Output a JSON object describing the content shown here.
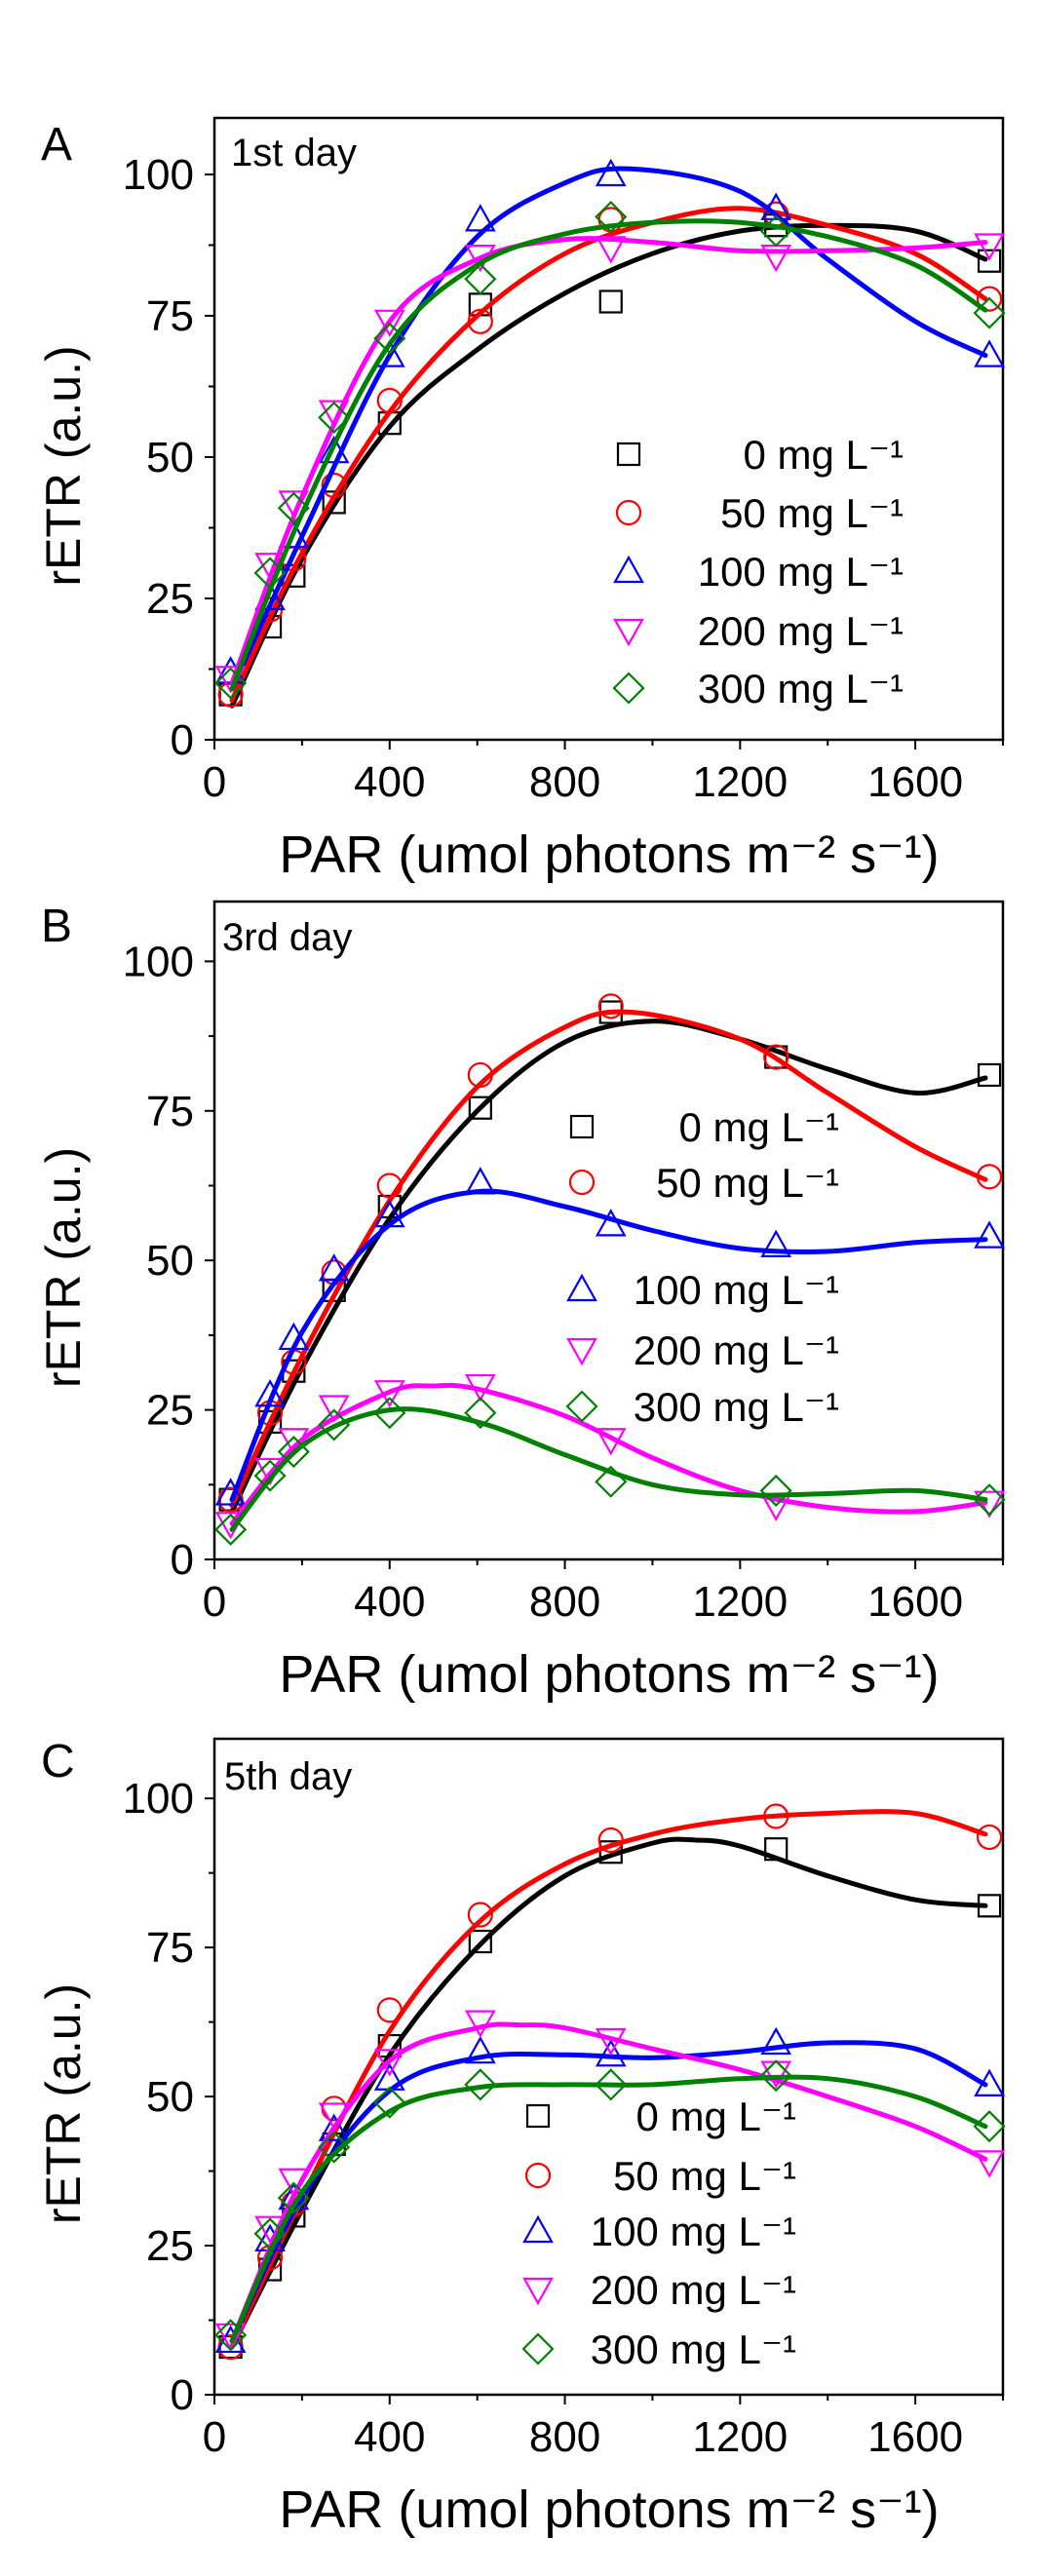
{
  "chart_data": [
    {
      "type": "scatter",
      "panel_label": "A",
      "annotation": "1st day",
      "xlabel": "PAR (umol photons m⁻² s⁻¹)",
      "ylabel": "rETR (a.u.)",
      "xlim": [
        0,
        1800
      ],
      "ylim": [
        0,
        110
      ],
      "xticks": [
        "0",
        "400",
        "800",
        "1200",
        "1600"
      ],
      "yticks": [
        "0",
        "25",
        "50",
        "75",
        "100"
      ],
      "grid": false,
      "legend_placement": "bottom-right",
      "x": [
        37,
        127,
        181,
        273,
        400,
        607,
        905,
        1282,
        1769
      ],
      "series": [
        {
          "name": "0 mg L⁻¹",
          "color": "#000000",
          "marker": "square",
          "values": [
            8,
            20,
            29,
            42,
            56,
            77,
            77.5,
            91,
            84.7
          ],
          "fit": {
            "x": [
              40,
              200,
              400,
              600,
              800,
              1000,
              1200,
              1400,
              1600,
              1760
            ],
            "y": [
              6,
              32,
              55.4,
              69,
              79,
              86,
              90,
              91,
              90,
              85
            ]
          }
        },
        {
          "name": "50 mg L⁻¹",
          "color": "#ff0000",
          "marker": "circle",
          "values": [
            8,
            23,
            32,
            45,
            60,
            74,
            92,
            93,
            78
          ],
          "fit": {
            "x": [
              40,
              200,
              400,
              600,
              800,
              1000,
              1200,
              1400,
              1600,
              1760
            ],
            "y": [
              7,
              33,
              58,
              75,
              86,
              91.5,
              94,
              91,
              86,
              78
            ]
          }
        },
        {
          "name": "100 mg L⁻¹",
          "color": "#0000ff",
          "marker": "triangle-up",
          "values": [
            12,
            25,
            36,
            51,
            68,
            92,
            100,
            94,
            68
          ],
          "fit": {
            "x": [
              40,
              200,
              400,
              600,
              800,
              950,
              1200,
              1400,
              1600,
              1760
            ],
            "y": [
              9,
              36,
              68,
              89,
              98.5,
              101,
              97,
              85,
              74,
              68
            ]
          }
        },
        {
          "name": "200 mg L⁻¹",
          "color": "#ff00ff",
          "marker": "triangle-down",
          "values": [
            11,
            31,
            42,
            58,
            74,
            85.5,
            87,
            85.5,
            87.5
          ],
          "fit": {
            "x": [
              40,
              200,
              400,
              600,
              800,
              1000,
              1200,
              1400,
              1600,
              1760
            ],
            "y": [
              10,
              43,
              74,
              85,
              88.5,
              88,
              86.5,
              86.5,
              87,
              88
            ]
          }
        },
        {
          "name": "300 mg L⁻¹",
          "color": "#008000",
          "marker": "diamond",
          "values": [
            10,
            29.5,
            41,
            57,
            71,
            81.5,
            92.5,
            90,
            75.5
          ],
          "fit": {
            "x": [
              40,
              200,
              400,
              600,
              800,
              1000,
              1200,
              1400,
              1600,
              1760
            ],
            "y": [
              9,
              40,
              70,
              84,
              89.5,
              91.5,
              91.5,
              89,
              84,
              76
            ]
          }
        }
      ]
    },
    {
      "type": "scatter",
      "panel_label": "B",
      "annotation": "3rd day",
      "xlabel": "PAR (umol photons m⁻² s⁻¹)",
      "ylabel": "rETR (a.u.)",
      "xlim": [
        0,
        1800
      ],
      "ylim": [
        0,
        110
      ],
      "xticks": [
        "0",
        "400",
        "800",
        "1200",
        "1600"
      ],
      "yticks": [
        "0",
        "25",
        "50",
        "75",
        "100"
      ],
      "grid": false,
      "legend_placement": "center-right",
      "x": [
        37,
        127,
        181,
        273,
        400,
        607,
        905,
        1282,
        1769
      ],
      "series": [
        {
          "name": "0 mg L⁻¹",
          "color": "#000000",
          "marker": "square",
          "values": [
            10,
            23,
            31.5,
            45,
            59,
            75.5,
            91.5,
            84,
            81
          ],
          "fit": {
            "x": [
              40,
              200,
              400,
              600,
              800,
              1000,
              1200,
              1400,
              1600,
              1760
            ],
            "y": [
              8,
              32,
              57,
              75,
              86.5,
              90,
              87,
              82,
              78,
              80.5
            ]
          }
        },
        {
          "name": "50 mg L⁻¹",
          "color": "#ff0000",
          "marker": "circle",
          "values": [
            10,
            24.5,
            33,
            48,
            62.5,
            81,
            92.5,
            84,
            64
          ],
          "fit": {
            "x": [
              40,
              200,
              400,
              600,
              800,
              950,
              1200,
              1400,
              1600,
              1760
            ],
            "y": [
              9,
              34,
              60,
              79,
              89,
              91.5,
              87,
              78,
              69,
              63.5
            ]
          }
        },
        {
          "name": "100 mg L⁻¹",
          "color": "#0000ff",
          "marker": "triangle-up",
          "values": [
            11,
            27.5,
            37,
            48.5,
            57.5,
            63,
            56,
            52.5,
            54
          ],
          "fit": {
            "x": [
              40,
              200,
              400,
              600,
              800,
              1000,
              1200,
              1400,
              1600,
              1760
            ],
            "y": [
              10,
              38,
              56,
              61.5,
              59,
              55,
              52,
              51.5,
              53,
              53.5
            ]
          }
        },
        {
          "name": "200 mg L⁻¹",
          "color": "#ff00ff",
          "marker": "triangle-down",
          "values": [
            6,
            15,
            20,
            25.5,
            28,
            29,
            20,
            9,
            9.5
          ],
          "fit": {
            "x": [
              40,
              200,
              400,
              500,
              600,
              800,
              1000,
              1200,
              1400,
              1600,
              1760
            ],
            "y": [
              6,
              20,
              28,
              29,
              28.5,
              24,
              17,
              11.5,
              8.7,
              8,
              9.5
            ]
          }
        },
        {
          "name": "300 mg L⁻¹",
          "color": "#008000",
          "marker": "diamond",
          "values": [
            5,
            14,
            18,
            22.5,
            24.5,
            24.5,
            13,
            11.5,
            10
          ],
          "fit": {
            "x": [
              40,
              200,
              400,
              600,
              800,
              1000,
              1200,
              1400,
              1600,
              1760
            ],
            "y": [
              5,
              19,
              25,
              23,
              17.5,
              12.5,
              10.8,
              11,
              11.5,
              10
            ]
          }
        }
      ]
    },
    {
      "type": "scatter",
      "panel_label": "C",
      "annotation": "5th day",
      "xlabel": "PAR (umol photons m⁻² s⁻¹)",
      "ylabel": "rETR (a.u.)",
      "xlim": [
        0,
        1800
      ],
      "ylim": [
        0,
        110
      ],
      "xticks": [
        "0",
        "400",
        "800",
        "1200",
        "1600"
      ],
      "yticks": [
        "0",
        "25",
        "50",
        "75",
        "100"
      ],
      "grid": false,
      "legend_placement": "bottom-center",
      "x": [
        37,
        127,
        181,
        273,
        400,
        607,
        905,
        1282,
        1769
      ],
      "series": [
        {
          "name": "0 mg L⁻¹",
          "color": "#000000",
          "marker": "square",
          "values": [
            8,
            21,
            30,
            42,
            58.5,
            76,
            91,
            91.5,
            82
          ],
          "fit": {
            "x": [
              40,
              200,
              400,
              600,
              800,
              1000,
              1100,
              1200,
              1400,
              1600,
              1760
            ],
            "y": [
              8,
              31,
              57,
              75,
              87,
              92.5,
              93,
              92,
              87,
              83,
              82
            ]
          }
        },
        {
          "name": "50 mg L⁻¹",
          "color": "#ff0000",
          "marker": "circle",
          "values": [
            8,
            23,
            32,
            48,
            64.5,
            80.5,
            93,
            97,
            93.5
          ],
          "fit": {
            "x": [
              40,
              200,
              400,
              600,
              800,
              1000,
              1200,
              1400,
              1600,
              1760
            ],
            "y": [
              8,
              33,
              61,
              79,
              89,
              94,
              96.5,
              97.5,
              97.5,
              94
            ]
          }
        },
        {
          "name": "100 mg L⁻¹",
          "color": "#0000ff",
          "marker": "triangle-up",
          "values": [
            9,
            26,
            33,
            44.5,
            53,
            57.5,
            57,
            59,
            52
          ],
          "fit": {
            "x": [
              40,
              200,
              400,
              600,
              800,
              1000,
              1200,
              1400,
              1600,
              1760
            ],
            "y": [
              9,
              33,
              51,
              56.5,
              57,
              56.5,
              57.5,
              59,
              58,
              52
            ]
          }
        },
        {
          "name": "200 mg L⁻¹",
          "color": "#ff00ff",
          "marker": "triangle-down",
          "values": [
            10,
            28,
            36,
            47,
            56,
            62.5,
            59.5,
            54,
            39
          ],
          "fit": {
            "x": [
              40,
              200,
              400,
              600,
              700,
              800,
              1000,
              1200,
              1400,
              1600,
              1760
            ],
            "y": [
              9,
              36,
              56,
              61.5,
              62,
              61.5,
              58,
              54.5,
              50,
              45,
              39.5
            ]
          }
        },
        {
          "name": "300 mg L⁻¹",
          "color": "#008000",
          "marker": "diamond",
          "values": [
            10,
            27,
            33,
            41.5,
            49,
            52,
            52,
            53.5,
            45
          ],
          "fit": {
            "x": [
              40,
              200,
              400,
              600,
              800,
              1000,
              1200,
              1400,
              1600,
              1760
            ],
            "y": [
              9,
              34,
              47.5,
              51.5,
              52,
              52,
              53,
              53,
              50,
              45
            ]
          }
        }
      ]
    }
  ]
}
